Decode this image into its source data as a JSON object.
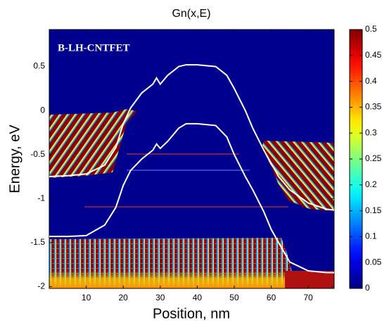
{
  "chart_data": {
    "type": "line",
    "title": "Gn(x,E)",
    "xlabel": "Position, nm",
    "ylabel": "Energy, eV",
    "annotation": "B-LH-CNTFET",
    "x": [
      0,
      5,
      10,
      15,
      18,
      20,
      22,
      25,
      28,
      29,
      30,
      32,
      35,
      37,
      40,
      45,
      48,
      50,
      53,
      55,
      58,
      60,
      62,
      65,
      70,
      75,
      77
    ],
    "series": [
      {
        "color": "#ffffff",
        "values": [
          -0.75,
          -0.74,
          -0.72,
          -0.62,
          -0.42,
          -0.15,
          0.03,
          0.2,
          0.3,
          0.37,
          0.3,
          0.4,
          0.5,
          0.52,
          0.52,
          0.5,
          0.4,
          0.25,
          0.0,
          -0.2,
          -0.45,
          -0.6,
          -0.75,
          -0.9,
          -1.05,
          -1.12,
          -1.13
        ]
      },
      {
        "color": "#ffffff",
        "values": [
          -1.43,
          -1.43,
          -1.42,
          -1.3,
          -1.1,
          -0.85,
          -0.68,
          -0.55,
          -0.45,
          -0.38,
          -0.43,
          -0.35,
          -0.2,
          -0.15,
          -0.15,
          -0.17,
          -0.3,
          -0.5,
          -0.75,
          -0.9,
          -1.15,
          -1.35,
          -1.5,
          -1.72,
          -1.82,
          -1.84,
          -1.84
        ]
      }
    ],
    "xlim": [
      0,
      77
    ],
    "xticks": [
      10,
      20,
      30,
      40,
      50,
      60,
      70
    ],
    "ylim": [
      -2.02,
      0.92
    ],
    "yticks": [
      0.5,
      0,
      -0.5,
      -1,
      -1.5,
      -2
    ],
    "colormap": "jet",
    "colorbar": {
      "lim": [
        0,
        0.5
      ],
      "ticks": [
        0,
        0.05,
        0.1,
        0.15,
        0.2,
        0.25,
        0.3,
        0.35,
        0.4,
        0.45,
        0.5
      ]
    }
  }
}
